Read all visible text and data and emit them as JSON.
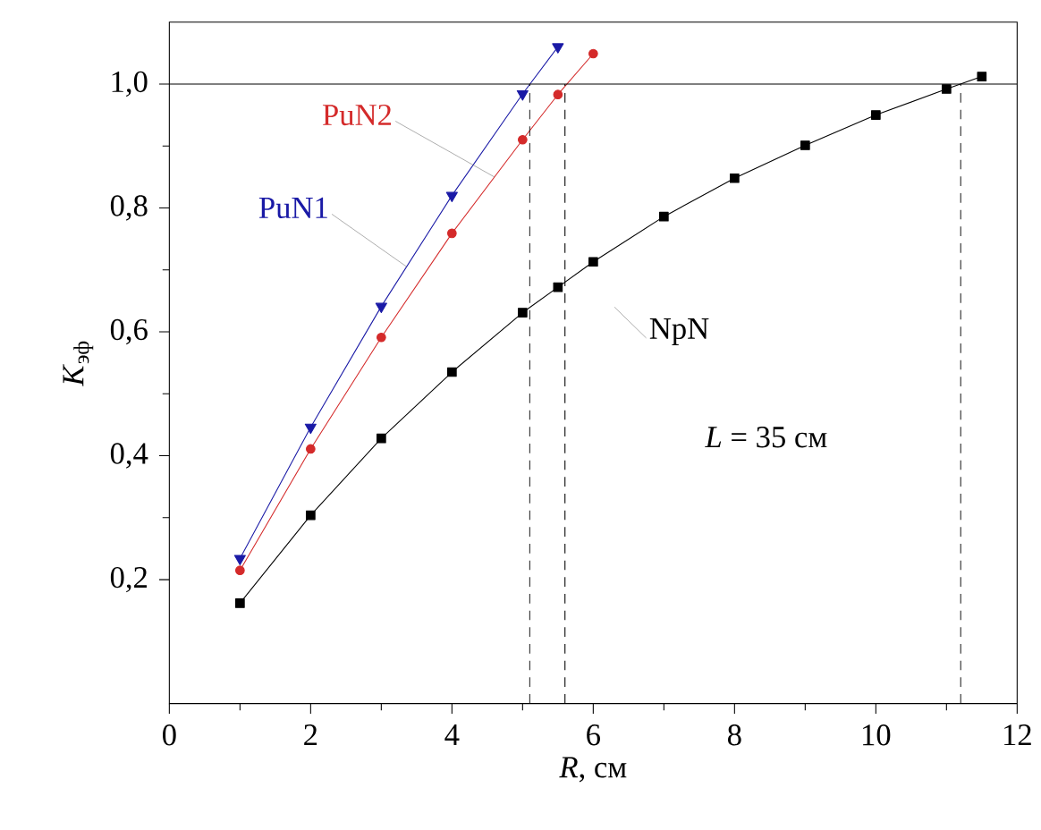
{
  "chart_data": {
    "type": "line",
    "xlabel": "*R*, см",
    "ylabel": "*K*$_{эф}$",
    "xlim": [
      0,
      12
    ],
    "ylim": [
      0,
      1.1
    ],
    "xticks": [
      0,
      2,
      4,
      6,
      8,
      10,
      12
    ],
    "yticks": [
      {
        "value": 0.2,
        "label": "0,2"
      },
      {
        "value": 0.4,
        "label": "0,4"
      },
      {
        "value": 0.6,
        "label": "0,6"
      },
      {
        "value": 0.8,
        "label": "0,8"
      },
      {
        "value": 1.0,
        "label": "1,0"
      }
    ],
    "series": [
      {
        "name": "PuN1",
        "color": "#1a1aa6",
        "marker": "triangle",
        "x": [
          1,
          2,
          3,
          4,
          5,
          5.5
        ],
        "values": [
          0.234,
          0.446,
          0.641,
          0.82,
          0.984,
          1.06
        ]
      },
      {
        "name": "PuN2",
        "color": "#d42a2a",
        "marker": "circle",
        "x": [
          1,
          2,
          3,
          4,
          5,
          5.5,
          6
        ],
        "values": [
          0.215,
          0.411,
          0.591,
          0.759,
          0.91,
          0.983,
          1.049
        ]
      },
      {
        "name": "NpN",
        "color": "#000000",
        "marker": "square",
        "x": [
          1,
          2,
          3,
          4,
          5,
          5.5,
          6,
          7,
          8,
          9,
          10,
          11,
          11.5
        ],
        "values": [
          0.162,
          0.304,
          0.428,
          0.535,
          0.631,
          0.672,
          0.713,
          0.786,
          0.848,
          0.901,
          0.95,
          0.992,
          1.012
        ]
      }
    ],
    "ref_lines": [
      {
        "axis": "y",
        "value": 1.0,
        "line_style": "solid"
      },
      {
        "axis": "x",
        "value": 5.1,
        "line_style": "dashed"
      },
      {
        "axis": "x",
        "value": 5.6,
        "line_style": "dashed"
      },
      {
        "axis": "x",
        "value": 11.2,
        "line_style": "dashed"
      }
    ],
    "annotations": [
      "*L* = 35 см"
    ],
    "legend": false
  }
}
